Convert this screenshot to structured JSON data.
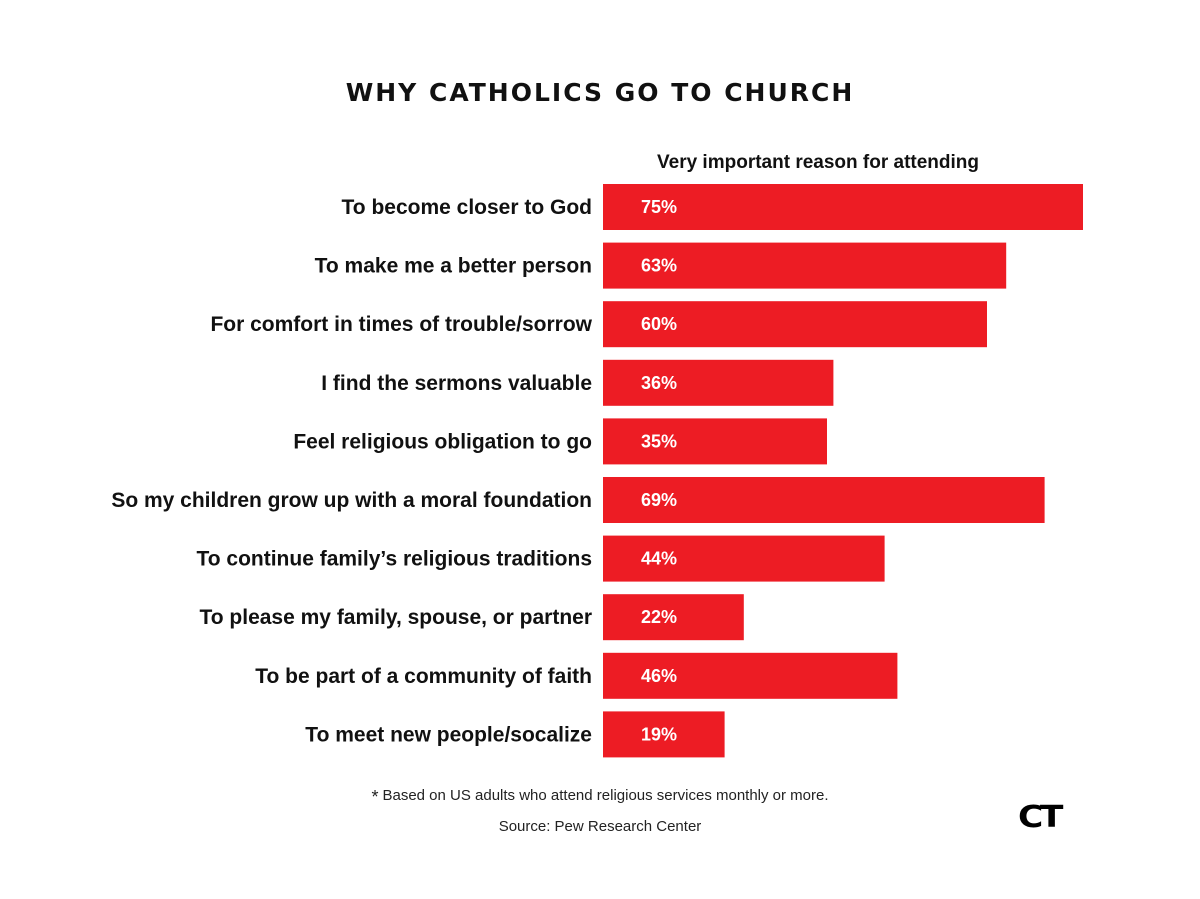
{
  "chart_data": {
    "type": "bar",
    "orientation": "horizontal",
    "title": "WHY CATHOLICS GO TO CHURCH",
    "subtitle": "Very important reason for attending",
    "categories": [
      "To become closer to God",
      "To make me a better person",
      "For comfort in times of trouble/sorrow",
      "I find the sermons valuable",
      "Feel religious obligation to go",
      "So my children grow up with a moral foundation",
      "To continue family’s religious traditions",
      "To please my family, spouse, or partner",
      "To be part of a community of faith",
      "To meet new people/socalize"
    ],
    "values": [
      75,
      63,
      60,
      36,
      35,
      69,
      44,
      22,
      46,
      19
    ],
    "value_labels": [
      "75%",
      "63%",
      "60%",
      "36%",
      "35%",
      "69%",
      "44%",
      "22%",
      "46%",
      "19%"
    ],
    "xlim": [
      0,
      75
    ],
    "bar_color": "#ed1c24",
    "grid": false,
    "legend": "none"
  },
  "footnote": {
    "star": "*",
    "text": "Based on US adults who attend religious services monthly or more."
  },
  "source": "Source: Pew Research Center",
  "logo": "CT"
}
